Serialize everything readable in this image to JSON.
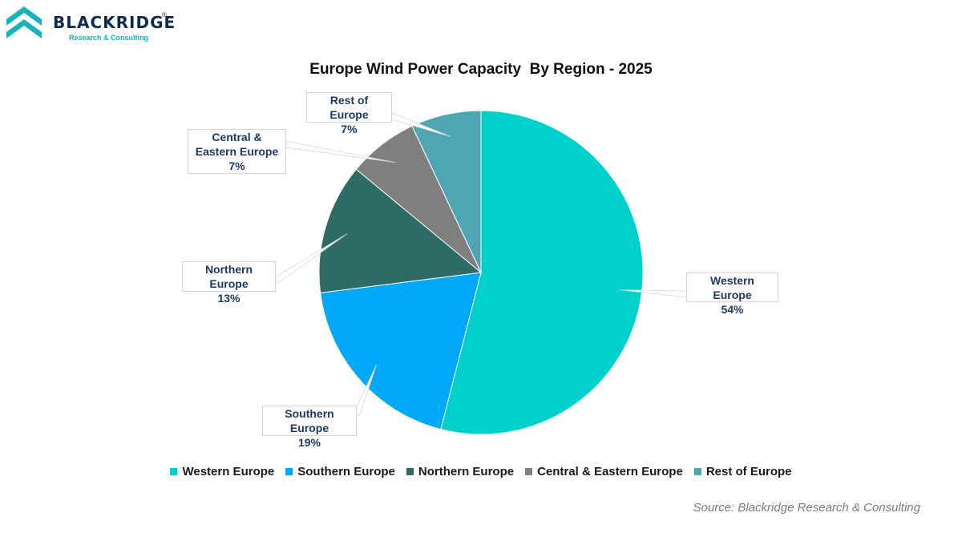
{
  "brand": {
    "name": "BLACKRIDGE",
    "registered_mark": "®",
    "tagline": "Research & Consulting",
    "colors": {
      "dark": "#0e2d4a",
      "teal": "#16b3b8"
    }
  },
  "source_note": "Source: Blackridge Research & Consulting",
  "chart_data": {
    "type": "pie",
    "title": "Europe Wind Power Capacity  By Region - 2025",
    "legend_position": "bottom",
    "slices": [
      {
        "label": "Western Europe",
        "value": 54,
        "display": "54%",
        "color": "#00d0cc"
      },
      {
        "label": "Southern Europe",
        "value": 19,
        "display": "19%",
        "color": "#00a9f7"
      },
      {
        "label": "Northern Europe",
        "value": 13,
        "display": "13%",
        "color": "#2e6a66"
      },
      {
        "label": "Central & Eastern Europe",
        "value": 7,
        "display": "7%",
        "color": "#7f7f7f"
      },
      {
        "label": "Rest of Europe",
        "value": 7,
        "display": "7%",
        "color": "#4ea6b2"
      }
    ]
  }
}
